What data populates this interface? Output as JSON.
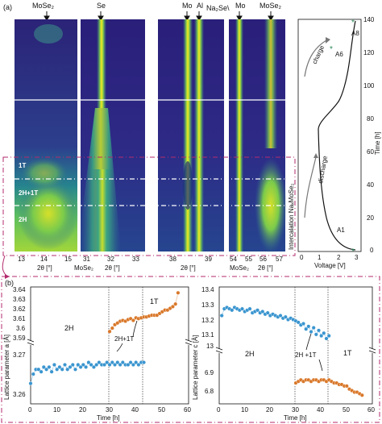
{
  "panel_a": {
    "label": "(a)",
    "top_labels": {
      "p1": "MoSe₂",
      "p2": "Se",
      "p3_mo": "Mo",
      "p3_al": "Al",
      "p4_na2se": "Na₂Se\\",
      "p4_mo": "Mo",
      "p4_mose2": "MoSe₂"
    },
    "bottom_labels": {
      "mose2_1": "MoSe₂",
      "mose2_2": "MoSe₂",
      "two_theta": "2θ [°]"
    },
    "x_ticks": {
      "p1": [
        "13",
        "14",
        "15"
      ],
      "p2": [
        "31",
        "32",
        "33"
      ],
      "p3": [
        "38",
        "39"
      ],
      "p4": [
        "54",
        "55",
        "56",
        "57"
      ],
      "p5": [
        "0",
        "1",
        "2",
        "3"
      ]
    },
    "phase_labels": [
      "1T",
      "2H+1T",
      "2H"
    ],
    "intercalation_label": "Intercalation NaₓMoSe₂",
    "voltage_axis": {
      "xlabel": "Voltage [V]",
      "ylabel": "Time [h]",
      "yticks": [
        "0",
        "20",
        "40",
        "60",
        "80",
        "100",
        "120",
        "140"
      ],
      "markers": [
        "A1",
        "A6",
        "A8"
      ],
      "charge": "charge",
      "discharge": "discharge"
    }
  },
  "panel_b": {
    "label": "(b)",
    "left_chart": {
      "ylabel": "Lattice parameter a [Å]",
      "xlabel": "Time [h]",
      "yticks_top": [
        "3.64",
        "3.63",
        "3.62",
        "3.61",
        "3.6",
        "3.59"
      ],
      "yticks_bottom": [
        "3.27",
        "3.26"
      ],
      "xticks": [
        "0",
        "10",
        "20",
        "30",
        "40",
        "50",
        "60"
      ],
      "labels": [
        "2H",
        "2H+1T",
        "1T"
      ]
    },
    "right_chart": {
      "ylabel": "Lattice parameter c [Å]",
      "xlabel": "Time [h]",
      "yticks_top": [
        "13.4",
        "13.3",
        "13.2",
        "13.1",
        "13"
      ],
      "yticks_bottom": [
        "6.9",
        "6.8"
      ],
      "xticks": [
        "0",
        "10",
        "20",
        "30",
        "40",
        "50",
        "60"
      ],
      "labels": [
        "2H",
        "2H +1T",
        "1T"
      ]
    },
    "colors": {
      "blue": "#3a95cf",
      "orange": "#d9782a"
    }
  },
  "chart_data": [
    {
      "type": "scatter",
      "ylim_bottom": [
        3.255,
        3.275
      ],
      "ylim_top": [
        3.585,
        3.645
      ],
      "xlim": [
        0,
        60
      ],
      "series": [
        {
          "color": "blue",
          "x": [
            0,
            1,
            2,
            3,
            4,
            5,
            6,
            7,
            8,
            9,
            10,
            11,
            12,
            13,
            14,
            15,
            16,
            17,
            18,
            19,
            20,
            21,
            22,
            23,
            24,
            25,
            26,
            27,
            28,
            29,
            30,
            31,
            32,
            33,
            34,
            35,
            36,
            37,
            38,
            39,
            40,
            41,
            42,
            43
          ],
          "y": [
            3.262,
            3.266,
            3.268,
            3.268,
            3.267,
            3.269,
            3.268,
            3.269,
            3.267,
            3.27,
            3.268,
            3.269,
            3.268,
            3.27,
            3.268,
            3.269,
            3.27,
            3.268,
            3.27,
            3.269,
            3.27,
            3.269,
            3.271,
            3.27,
            3.269,
            3.27,
            3.271,
            3.27,
            3.27,
            3.271,
            3.27,
            3.271,
            3.27,
            3.271,
            3.27,
            3.271,
            3.27,
            3.27,
            3.271,
            3.27,
            3.271,
            3.27,
            3.271,
            3.271
          ]
        },
        {
          "color": "orange",
          "x": [
            30,
            31,
            32,
            33,
            34,
            35,
            36,
            37,
            38,
            39,
            40,
            41,
            42,
            43,
            44,
            45,
            46,
            47,
            48,
            49,
            50,
            51,
            52,
            53,
            54,
            55,
            56
          ],
          "y": [
            3.595,
            3.599,
            3.603,
            3.605,
            3.607,
            3.608,
            3.607,
            3.609,
            3.61,
            3.608,
            3.611,
            3.61,
            3.611,
            3.612,
            3.612,
            3.613,
            3.614,
            3.614,
            3.614,
            3.616,
            3.618,
            3.62,
            3.62,
            3.622,
            3.624,
            3.627,
            3.64
          ]
        }
      ]
    },
    {
      "type": "scatter",
      "ylim_bottom": [
        6.75,
        6.95
      ],
      "ylim_top": [
        12.97,
        13.4
      ],
      "xlim": [
        0,
        60
      ],
      "series": [
        {
          "color": "blue",
          "x": [
            1,
            2,
            3,
            4,
            5,
            6,
            7,
            8,
            9,
            10,
            11,
            12,
            13,
            14,
            15,
            16,
            17,
            18,
            19,
            20,
            21,
            22,
            23,
            24,
            25,
            26,
            27,
            28,
            29,
            30,
            31,
            32,
            33,
            34,
            35,
            36,
            37,
            38,
            39,
            40,
            41,
            42,
            43
          ],
          "y": [
            13.2,
            13.25,
            13.26,
            13.25,
            13.24,
            13.26,
            13.25,
            13.24,
            13.25,
            13.23,
            13.24,
            13.25,
            13.22,
            13.23,
            13.24,
            13.22,
            13.23,
            13.21,
            13.22,
            13.2,
            13.21,
            13.2,
            13.19,
            13.2,
            13.18,
            13.19,
            13.17,
            13.18,
            13.17,
            13.16,
            13.15,
            13.13,
            13.14,
            13.1,
            13.12,
            13.08,
            13.11,
            13.06,
            13.09,
            13.05,
            13.07,
            13.03,
            13.05
          ]
        },
        {
          "color": "orange",
          "x": [
            30,
            31,
            32,
            33,
            34,
            35,
            36,
            37,
            38,
            39,
            40,
            41,
            42,
            43,
            44,
            45,
            46,
            47,
            48,
            49,
            50,
            51,
            52,
            53,
            54,
            55,
            56
          ],
          "y": [
            6.86,
            6.87,
            6.88,
            6.87,
            6.88,
            6.88,
            6.87,
            6.88,
            6.88,
            6.87,
            6.88,
            6.88,
            6.87,
            6.88,
            6.87,
            6.86,
            6.86,
            6.85,
            6.85,
            6.84,
            6.84,
            6.82,
            6.81,
            6.8,
            6.8,
            6.79,
            6.78
          ]
        }
      ]
    }
  ]
}
